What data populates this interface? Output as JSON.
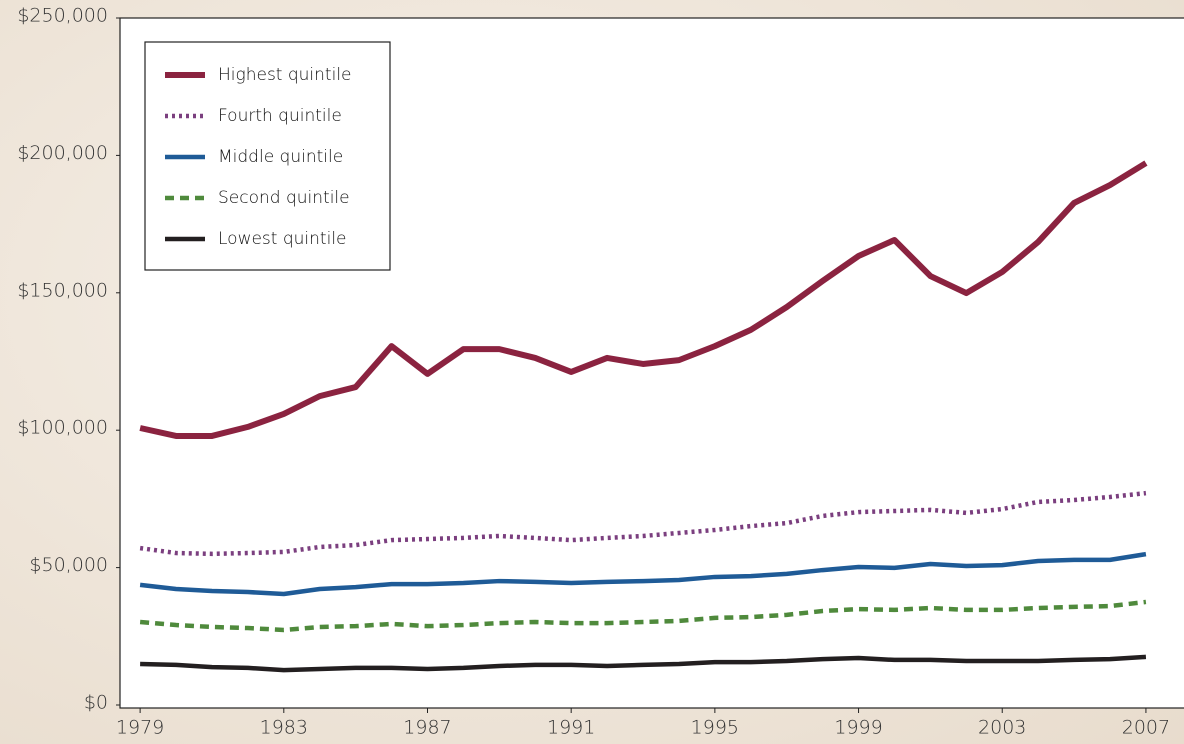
{
  "chart_data": {
    "type": "line",
    "x": [
      1979,
      1980,
      1981,
      1982,
      1983,
      1984,
      1985,
      1986,
      1987,
      1988,
      1989,
      1990,
      1991,
      1992,
      1993,
      1994,
      1995,
      1996,
      1997,
      1998,
      1999,
      2000,
      2001,
      2002,
      2003,
      2004,
      2005,
      2006,
      2007
    ],
    "series": [
      {
        "name": "Highest quintile",
        "color": "#8b2340",
        "style": "solid",
        "values": [
          100800,
          97900,
          97900,
          101200,
          105900,
          112400,
          115700,
          130600,
          120500,
          129500,
          129500,
          126300,
          121200,
          126300,
          124100,
          125500,
          130600,
          136500,
          144800,
          154300,
          163400,
          169200,
          156100,
          149900,
          157600,
          168500,
          182700,
          189200,
          197200
        ]
      },
      {
        "name": "Fourth quintile",
        "color": "#7b3f7f",
        "style": "dotted",
        "values": [
          57100,
          55300,
          55000,
          55300,
          55700,
          57500,
          58200,
          60000,
          60400,
          60800,
          61500,
          60800,
          60000,
          60800,
          61500,
          62600,
          63700,
          65100,
          66200,
          68800,
          70200,
          70600,
          71000,
          69900,
          71300,
          73900,
          74600,
          75700,
          77100
        ]
      },
      {
        "name": "Middle quintile",
        "color": "#1f5b97",
        "style": "solid",
        "values": [
          43700,
          42200,
          41500,
          41100,
          40400,
          42200,
          42900,
          44000,
          44000,
          44400,
          45100,
          44800,
          44400,
          44800,
          45100,
          45500,
          46600,
          46900,
          47700,
          49100,
          50200,
          49900,
          51300,
          50600,
          50900,
          52400,
          52800,
          52800,
          54900
        ]
      },
      {
        "name": "Second quintile",
        "color": "#4f8a3c",
        "style": "dashed",
        "values": [
          30200,
          29100,
          28400,
          28000,
          27300,
          28400,
          28700,
          29500,
          28700,
          29100,
          29800,
          30200,
          29800,
          29800,
          30200,
          30600,
          31700,
          32000,
          32800,
          34200,
          34900,
          34600,
          35300,
          34600,
          34600,
          35300,
          35700,
          36000,
          37500
        ]
      },
      {
        "name": "Lowest quintile",
        "color": "#231f20",
        "style": "solid",
        "values": [
          14900,
          14600,
          13800,
          13500,
          12700,
          13100,
          13500,
          13500,
          13100,
          13500,
          14200,
          14600,
          14600,
          14200,
          14600,
          14900,
          15600,
          15600,
          16000,
          16700,
          17100,
          16400,
          16400,
          16000,
          16000,
          16000,
          16400,
          16700,
          17500
        ]
      }
    ],
    "xlim": [
      1978.44,
      2008.06
    ],
    "xticks": [
      1979,
      1983,
      1987,
      1991,
      1995,
      1999,
      2003,
      2007
    ],
    "ylim": [
      0,
      250000
    ],
    "yticks": [
      {
        "value": 0,
        "label": "$0"
      },
      {
        "value": 50000,
        "label": "$50,000"
      },
      {
        "value": 100000,
        "label": "$100,000"
      },
      {
        "value": 150000,
        "label": "$150,000"
      },
      {
        "value": 200000,
        "label": "$200,000"
      },
      {
        "value": 250000,
        "label": "$250,000"
      }
    ],
    "legend": "upper left"
  }
}
